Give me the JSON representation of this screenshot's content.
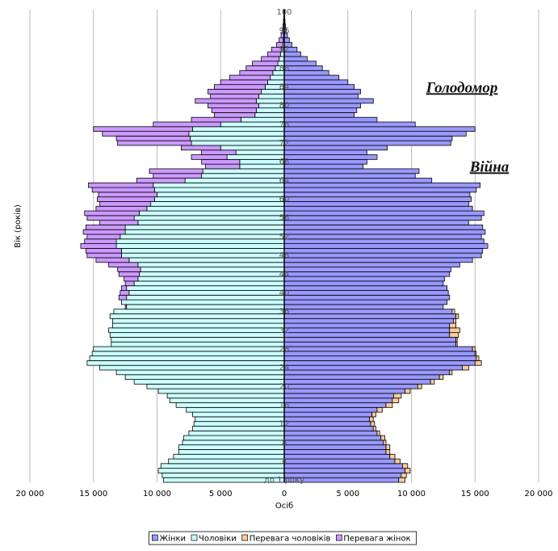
{
  "chart_data": {
    "type": "pyramid",
    "y_label": "Вік (років)",
    "x_label": "Осіб",
    "annotations": [
      "Голодомор",
      "Війна"
    ],
    "categories": [
      "до 1 року",
      null,
      null,
      null,
      "4",
      null,
      null,
      null,
      "8",
      null,
      null,
      null,
      "12",
      null,
      null,
      null,
      "16",
      null,
      null,
      null,
      "20",
      null,
      null,
      null,
      "24",
      null,
      null,
      null,
      "28",
      null,
      null,
      null,
      "32",
      null,
      null,
      null,
      "36",
      null,
      null,
      null,
      "40",
      null,
      null,
      null,
      "44",
      null,
      null,
      null,
      "48",
      null,
      null,
      null,
      "52",
      null,
      null,
      null,
      "56",
      null,
      null,
      null,
      "60",
      null,
      null,
      null,
      "64",
      null,
      null,
      null,
      "68",
      null,
      null,
      null,
      "72",
      null,
      null,
      null,
      "76",
      null,
      null,
      null,
      "80",
      null,
      null,
      null,
      "84",
      null,
      null,
      null,
      "88",
      null,
      null,
      null,
      "92",
      null,
      null,
      null,
      "96",
      null,
      null,
      null,
      "100"
    ],
    "series": [
      {
        "name": "Жінки",
        "color": "#9999ff",
        "values": [
          9000,
          9200,
          9500,
          9300,
          8700,
          8300,
          8000,
          8000,
          7800,
          7600,
          7300,
          7000,
          6800,
          6700,
          6900,
          7300,
          8000,
          8500,
          8600,
          9500,
          10500,
          11500,
          12200,
          13000,
          14000,
          15000,
          15100,
          15000,
          14800,
          13500,
          13500,
          13000,
          13000,
          13000,
          13300,
          13500,
          13200,
          12500,
          12800,
          13000,
          12900,
          12800,
          12500,
          12600,
          13000,
          13100,
          13800,
          14800,
          15500,
          15600,
          16000,
          15700,
          15500,
          15800,
          15600,
          14500,
          15500,
          15700,
          14800,
          14500,
          14700,
          14600,
          15100,
          15400,
          11600,
          10300,
          10600,
          6200,
          6500,
          7300,
          6500,
          8100,
          13100,
          13200,
          14300,
          15000,
          10300,
          7300,
          5500,
          5700,
          6000,
          7000,
          5800,
          6000,
          5500,
          5000,
          4300,
          3500,
          3000,
          2500,
          1800,
          1300,
          1000,
          600,
          400,
          250,
          150,
          100,
          60,
          40,
          30
        ]
      },
      {
        "name": "Чоловіки",
        "color": "#ccffff",
        "values": [
          9500,
          9600,
          9900,
          9700,
          9100,
          8700,
          8300,
          8300,
          8000,
          7900,
          7500,
          7200,
          7100,
          7000,
          7200,
          7700,
          8500,
          9000,
          9200,
          9900,
          10800,
          11800,
          12500,
          13200,
          14500,
          15500,
          15300,
          15100,
          15000,
          13600,
          13600,
          13700,
          13800,
          13500,
          13500,
          13700,
          13400,
          12400,
          12800,
          12400,
          12200,
          12400,
          11800,
          11500,
          11400,
          11300,
          11500,
          12200,
          12800,
          12800,
          13200,
          13200,
          12900,
          12500,
          12500,
          11500,
          11800,
          11400,
          10800,
          10500,
          10200,
          10000,
          10200,
          10300,
          7800,
          6500,
          6400,
          3500,
          3500,
          4500,
          3800,
          5000,
          7300,
          7400,
          7500,
          7200,
          5000,
          3400,
          2300,
          2200,
          2000,
          2200,
          2000,
          1800,
          1500,
          1300,
          1100,
          900,
          700,
          500,
          400,
          300,
          200,
          120,
          80,
          50,
          30,
          20,
          10,
          8,
          5
        ]
      },
      {
        "name": "Перевага чоловіків",
        "color": "#ffcc99",
        "values": [
          500,
          400,
          400,
          400,
          400,
          400,
          300,
          300,
          200,
          300,
          200,
          200,
          300,
          300,
          300,
          400,
          500,
          500,
          600,
          400,
          300,
          300,
          300,
          200,
          500,
          500,
          200,
          100,
          200,
          100,
          100,
          700,
          800,
          500,
          200,
          200,
          200,
          null,
          null,
          null,
          null,
          null,
          null,
          null,
          null,
          null,
          null,
          null,
          null,
          null,
          null,
          null,
          null,
          null,
          null,
          null,
          null,
          null,
          null,
          null,
          null,
          null,
          null,
          null,
          null,
          null,
          null,
          null,
          null,
          null,
          null,
          null,
          null,
          null,
          null,
          null,
          null,
          null,
          null,
          null,
          null,
          null,
          null,
          null,
          null,
          null,
          null,
          null,
          null,
          null,
          null,
          null,
          null,
          null,
          null,
          null,
          null,
          null,
          null,
          null,
          null
        ]
      },
      {
        "name": "Перевага жінок",
        "color": "#cc99ff",
        "values": [
          null,
          null,
          null,
          null,
          null,
          null,
          null,
          null,
          null,
          null,
          null,
          null,
          null,
          null,
          null,
          null,
          null,
          null,
          null,
          null,
          null,
          null,
          null,
          null,
          null,
          null,
          null,
          null,
          null,
          null,
          null,
          null,
          null,
          null,
          null,
          null,
          null,
          100,
          null,
          600,
          700,
          400,
          700,
          1100,
          1600,
          1800,
          2300,
          2600,
          2700,
          2800,
          2800,
          2500,
          2600,
          3300,
          3100,
          3000,
          3700,
          4300,
          4000,
          4000,
          4500,
          4600,
          4900,
          5100,
          3800,
          3800,
          4200,
          2700,
          3000,
          2800,
          2700,
          3100,
          5800,
          5800,
          6800,
          7800,
          5300,
          3900,
          3200,
          3500,
          4000,
          4800,
          3800,
          4200,
          4000,
          3700,
          3200,
          2600,
          2300,
          2000,
          1400,
          1000,
          800,
          480,
          320,
          200,
          120,
          80,
          50,
          32,
          25
        ]
      }
    ],
    "xlim": [
      -20000,
      20000
    ],
    "xticks": [
      {
        "value": -20000,
        "label": "20 000"
      },
      {
        "value": -15000,
        "label": "15 000"
      },
      {
        "value": -10000,
        "label": "10 000"
      },
      {
        "value": -5000,
        "label": "5 000"
      },
      0,
      {
        "value": 5000,
        "label": "5 000"
      },
      {
        "value": 10000,
        "label": "10 000"
      },
      {
        "value": 15000,
        "label": "15 000"
      },
      {
        "value": 20000,
        "label": "20 000"
      }
    ],
    "grid": true
  }
}
